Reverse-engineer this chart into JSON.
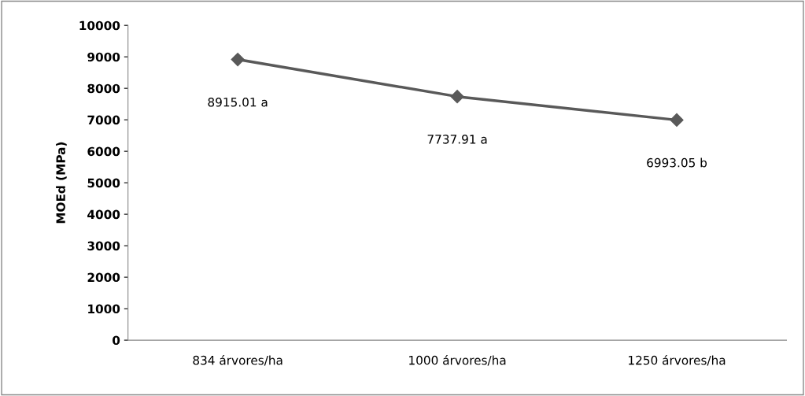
{
  "chart_data": {
    "type": "line",
    "ylabel": "MOEd (MPa)",
    "categories": [
      "834 árvores/ha",
      "1000 árvores/ha",
      "1250 árvores/ha"
    ],
    "series": [
      {
        "color": "#595959",
        "values": [
          8915.01,
          7737.91,
          6993.05
        ],
        "value_labels": [
          "8915.01 a",
          "7737.91 a",
          "6993.05 b"
        ]
      }
    ],
    "ylim": [
      0,
      10000
    ],
    "yticks": [
      0,
      1000,
      2000,
      3000,
      4000,
      5000,
      6000,
      7000,
      8000,
      9000,
      10000
    ],
    "grid": false,
    "legend": false,
    "marker": "diamond",
    "line_style": "solid"
  }
}
